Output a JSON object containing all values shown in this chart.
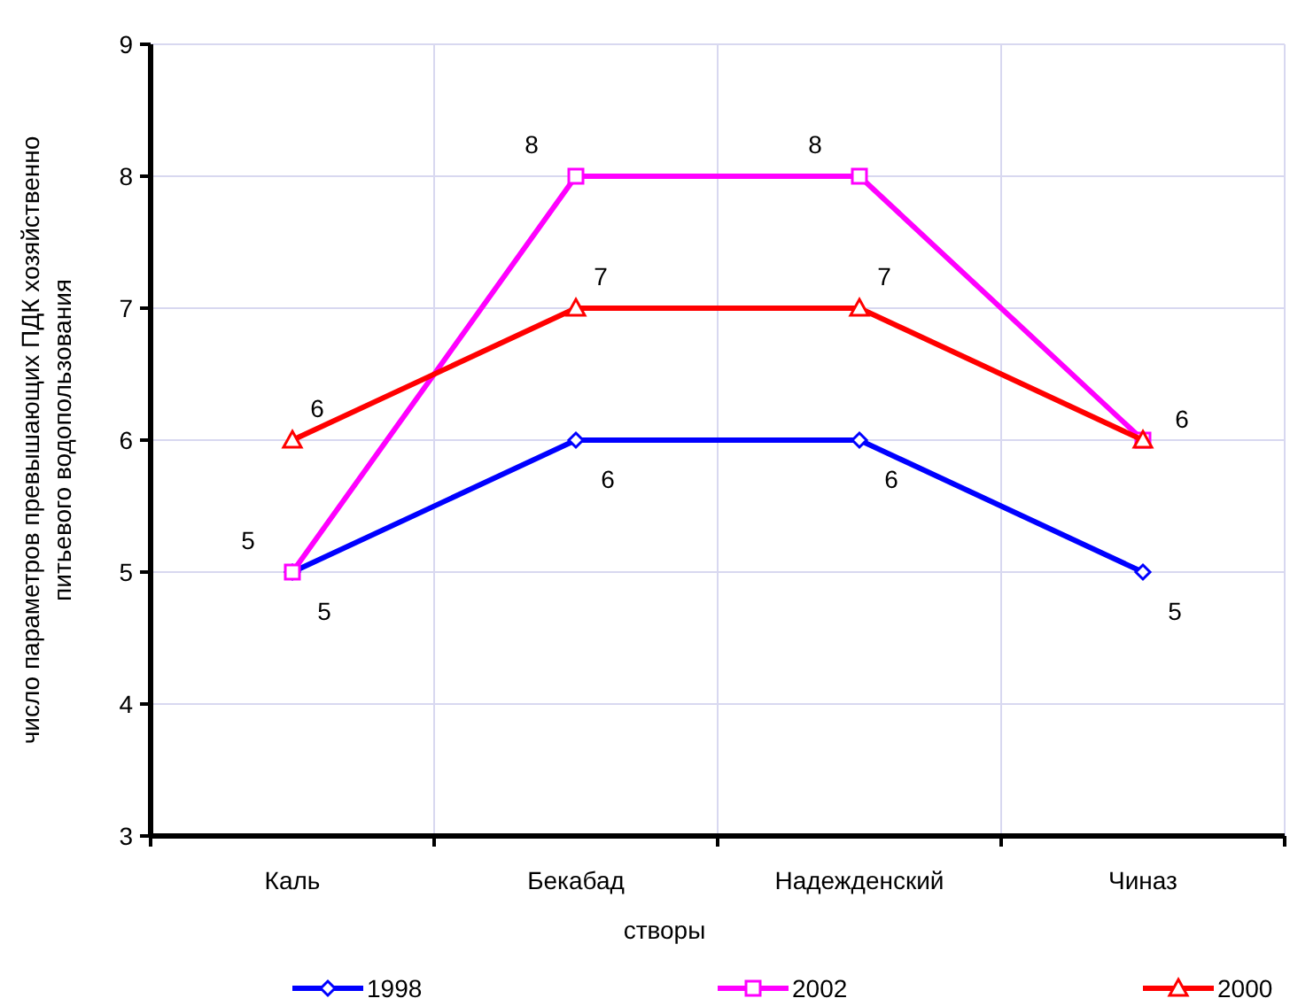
{
  "chart_data": {
    "type": "line",
    "xlabel": "створы",
    "ylabel": "число параметров превышающих ПДК хозяйственно питьевого водопользования",
    "categories": [
      "Каль",
      "Бекабад",
      "Надежденский",
      "Чиназ"
    ],
    "series": [
      {
        "name": "1998",
        "color": "#0000ff",
        "marker": "diamond",
        "values": [
          5,
          6,
          6,
          5
        ],
        "value_labels": [
          "5",
          "6",
          "6",
          "5"
        ]
      },
      {
        "name": "2002",
        "color": "#ff00ff",
        "marker": "square",
        "values": [
          5,
          8,
          8,
          6
        ],
        "value_labels": [
          "5",
          "8",
          "8",
          "6"
        ]
      },
      {
        "name": "2000",
        "color": "#ff0000",
        "marker": "triangle",
        "values": [
          6,
          7,
          7,
          6
        ],
        "value_labels": [
          "6",
          "7",
          "7",
          null
        ]
      }
    ],
    "ylim": [
      3,
      9
    ],
    "yticks": [
      3,
      4,
      5,
      6,
      7,
      8,
      9
    ],
    "grid": true,
    "legend": "bottom",
    "line_style": "solid"
  }
}
